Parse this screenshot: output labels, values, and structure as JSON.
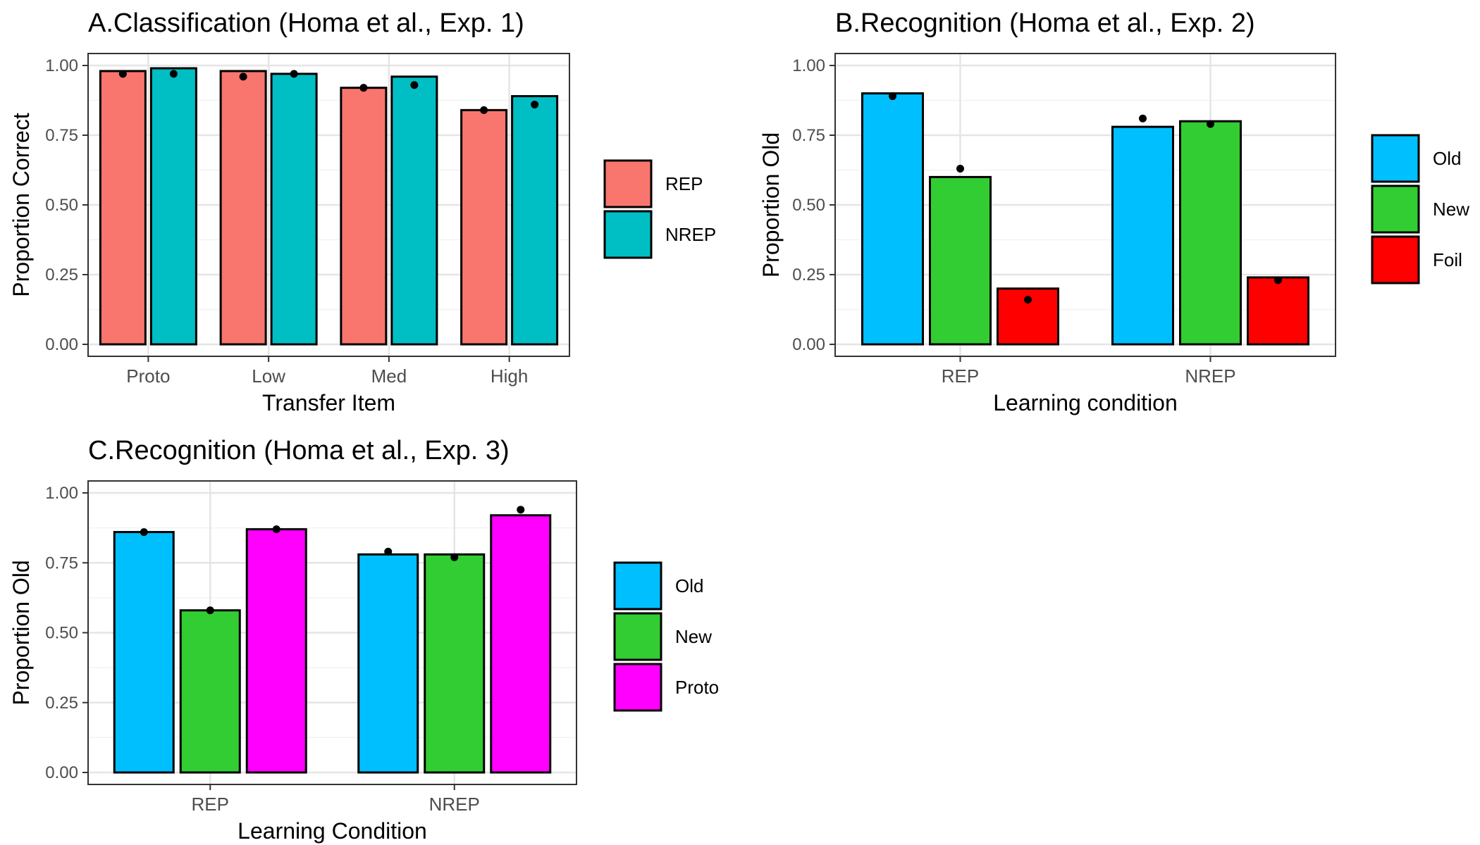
{
  "figure": {
    "panels": [
      {
        "id": "A",
        "title": "A.Classification (Homa et al., Exp. 1)"
      },
      {
        "id": "B",
        "title": "B.Recognition (Homa et al., Exp. 2)"
      },
      {
        "id": "C",
        "title": "C.Recognition (Homa et al., Exp. 3)"
      }
    ]
  },
  "chart_data": [
    {
      "type": "bar",
      "title": "A.Classification (Homa et al., Exp. 1)",
      "xlabel": "Transfer Item",
      "ylabel": "Proportion Correct",
      "ylim": [
        0,
        1
      ],
      "yticks": [
        "0.00",
        "0.25",
        "0.50",
        "0.75",
        "1.00"
      ],
      "grid": true,
      "legend_position": "right",
      "categories": [
        "Proto",
        "Low",
        "Med",
        "High"
      ],
      "series": [
        {
          "name": "REP",
          "color": "#F8766D",
          "values": [
            0.98,
            0.98,
            0.92,
            0.84
          ],
          "points": [
            0.97,
            0.96,
            0.92,
            0.84
          ]
        },
        {
          "name": "NREP",
          "color": "#00BFC4",
          "values": [
            0.99,
            0.97,
            0.96,
            0.89
          ],
          "points": [
            0.97,
            0.97,
            0.93,
            0.86
          ]
        }
      ]
    },
    {
      "type": "bar",
      "title": "B.Recognition (Homa et al., Exp. 2)",
      "xlabel": "Learning condition",
      "ylabel": "Proportion Old",
      "ylim": [
        0,
        1
      ],
      "yticks": [
        "0.00",
        "0.25",
        "0.50",
        "0.75",
        "1.00"
      ],
      "grid": true,
      "legend_position": "right",
      "categories": [
        "REP",
        "NREP"
      ],
      "series": [
        {
          "name": "Old",
          "color": "#00BFFF",
          "values": [
            0.9,
            0.78
          ],
          "points": [
            0.89,
            0.81
          ]
        },
        {
          "name": "New",
          "color": "#32CD32",
          "values": [
            0.6,
            0.8
          ],
          "points": [
            0.63,
            0.79
          ]
        },
        {
          "name": "Foil",
          "color": "#FF0000",
          "values": [
            0.2,
            0.24
          ],
          "points": [
            0.16,
            0.23
          ]
        }
      ]
    },
    {
      "type": "bar",
      "title": "C.Recognition (Homa et al., Exp. 3)",
      "xlabel": "Learning Condition",
      "ylabel": "Proportion Old",
      "ylim": [
        0,
        1
      ],
      "yticks": [
        "0.00",
        "0.25",
        "0.50",
        "0.75",
        "1.00"
      ],
      "grid": true,
      "legend_position": "right",
      "categories": [
        "REP",
        "NREP"
      ],
      "series": [
        {
          "name": "Old",
          "color": "#00BFFF",
          "values": [
            0.86,
            0.78
          ],
          "points": [
            0.86,
            0.79
          ]
        },
        {
          "name": "New",
          "color": "#32CD32",
          "values": [
            0.58,
            0.78
          ],
          "points": [
            0.58,
            0.77
          ]
        },
        {
          "name": "Proto",
          "color": "#FF00FF",
          "values": [
            0.87,
            0.92
          ],
          "points": [
            0.87,
            0.94
          ]
        }
      ]
    }
  ]
}
